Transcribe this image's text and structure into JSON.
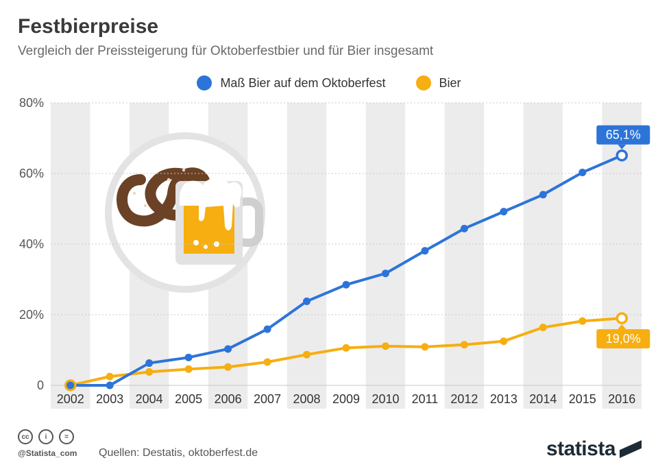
{
  "title": "Festbierpreise",
  "subtitle": "Vergleich der Preissteigerung für Oktoberfestbier und für Bier insgesamt",
  "legend": [
    {
      "label": "Maß Bier auf dem Oktoberfest",
      "color": "#2d74d9"
    },
    {
      "label": "Bier",
      "color": "#f6ae10"
    }
  ],
  "chart_data": {
    "type": "line",
    "x": [
      "2002",
      "2003",
      "2004",
      "2005",
      "2006",
      "2007",
      "2008",
      "2009",
      "2010",
      "2011",
      "2012",
      "2013",
      "2014",
      "2015",
      "2016"
    ],
    "y_ticks": [
      "80%",
      "60%",
      "40%",
      "20%",
      "0"
    ],
    "ylim": [
      0,
      80
    ],
    "grid": true,
    "legend_position": "top-center",
    "series": [
      {
        "name": "Maß Bier auf dem Oktoberfest",
        "color": "#2d74d9",
        "values": [
          0,
          0,
          6.3,
          7.9,
          10.3,
          15.9,
          23.8,
          28.5,
          31.7,
          38.1,
          44.4,
          49.2,
          54.0,
          60.3,
          65.1
        ],
        "end_label": "65,1%"
      },
      {
        "name": "Bier",
        "color": "#f6ae10",
        "values": [
          0,
          2.5,
          3.8,
          4.6,
          5.2,
          6.6,
          8.7,
          10.6,
          11.1,
          10.9,
          11.5,
          12.5,
          16.4,
          18.2,
          19.0
        ],
        "end_label": "19,0%"
      }
    ]
  },
  "footer": {
    "cc_icons": [
      "cc-icon",
      "by-icon",
      "nd-icon"
    ],
    "cc_glyphs": [
      "cc",
      "i",
      "="
    ],
    "handle": "@Statista_com",
    "source": "Quellen: Destatis, oktoberfest.de",
    "brand": "statista"
  }
}
